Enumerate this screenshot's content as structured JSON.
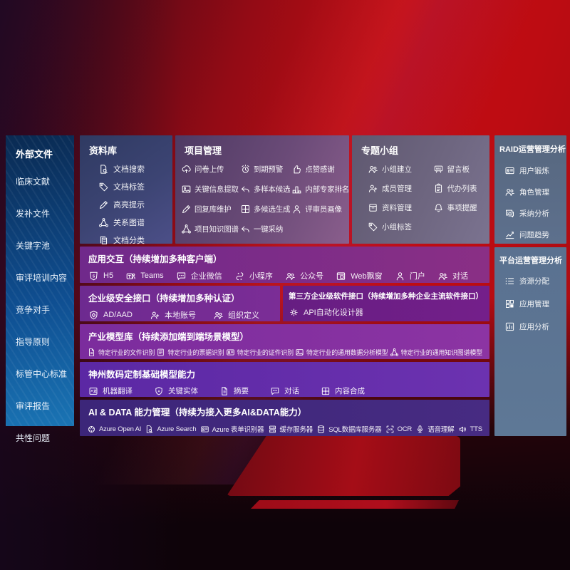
{
  "sidebar": {
    "title": "外部文件",
    "items": [
      "临床文献",
      "发补文件",
      "关键字池",
      "审评培训内容",
      "竞争对手",
      "指导原则",
      "标管中心标准",
      "审评报告",
      "共性问题"
    ]
  },
  "panels": {
    "library": {
      "title": "资料库",
      "items": [
        {
          "label": "文档搜索",
          "icon": "document-search"
        },
        {
          "label": "文档标签",
          "icon": "tag"
        },
        {
          "label": "高亮提示",
          "icon": "highlight-pen"
        },
        {
          "label": "关系图谱",
          "icon": "knowledge-graph"
        },
        {
          "label": "文档分类",
          "icon": "documents"
        }
      ]
    },
    "project": {
      "title": "项目管理",
      "items": [
        {
          "label": "问卷上传",
          "icon": "cloud-upload"
        },
        {
          "label": "关键信息提取",
          "icon": "image-extract"
        },
        {
          "label": "回复库维护",
          "icon": "edit-pen"
        },
        {
          "label": "项目知识图谱",
          "icon": "knowledge-graph"
        },
        {
          "label": "到期预警",
          "icon": "alarm"
        },
        {
          "label": "多样本候选",
          "icon": "reply-arrow"
        },
        {
          "label": "多候选生成",
          "icon": "puzzle"
        },
        {
          "label": "一键采纳",
          "icon": "back-arrow"
        },
        {
          "label": "点赞感谢",
          "icon": "thumb-up"
        },
        {
          "label": "内部专家排名",
          "icon": "ranking"
        },
        {
          "label": "评审员画像",
          "icon": "person"
        }
      ]
    },
    "group": {
      "title": "专题小组",
      "items": [
        {
          "label": "小组建立",
          "icon": "people"
        },
        {
          "label": "成员管理",
          "icon": "person-add"
        },
        {
          "label": "资料管理",
          "icon": "archive-box"
        },
        {
          "label": "小组标签",
          "icon": "tag"
        },
        {
          "label": "留言板",
          "icon": "bbs-board"
        },
        {
          "label": "代办列表",
          "icon": "clipboard"
        },
        {
          "label": "事项提醒",
          "icon": "bell"
        }
      ]
    },
    "raid": {
      "title": "RAID运营管理分析",
      "items": [
        {
          "label": "用户锻炼",
          "icon": "id-card"
        },
        {
          "label": "角色管理",
          "icon": "people"
        },
        {
          "label": "采纳分析",
          "icon": "chat-qa"
        },
        {
          "label": "问题趋势",
          "icon": "trend-chart"
        }
      ]
    },
    "platform": {
      "title": "平台运营管理分析",
      "items": [
        {
          "label": "资源分配",
          "icon": "list"
        },
        {
          "label": "应用管理",
          "icon": "grid-apps"
        },
        {
          "label": "应用分析",
          "icon": "chart-report"
        }
      ]
    }
  },
  "bands": {
    "interaction": {
      "title": "应用交互（持续增加多种客户端）",
      "items": [
        {
          "label": "H5",
          "icon": "h5"
        },
        {
          "label": "Teams",
          "icon": "teams"
        },
        {
          "label": "企业微信",
          "icon": "wechat-work"
        },
        {
          "label": "小程序",
          "icon": "mini-program"
        },
        {
          "label": "公众号",
          "icon": "official-account"
        },
        {
          "label": "Web飘窗",
          "icon": "web-window"
        },
        {
          "label": "门户",
          "icon": "portal-person"
        },
        {
          "label": "对话",
          "icon": "dialog-people"
        }
      ]
    },
    "security": {
      "title": "企业级安全接口（持续增加多种认证）",
      "items": [
        {
          "label": "AD/AAD",
          "icon": "ad-shield"
        },
        {
          "label": "本地账号",
          "icon": "local-account"
        },
        {
          "label": "组织定义",
          "icon": "organization"
        }
      ]
    },
    "thirdparty": {
      "title": "第三方企业级软件接口（持续增加多种企业主流软件接口）",
      "items": [
        {
          "label": "API自动化设计器",
          "icon": "api-gear"
        }
      ]
    },
    "models": {
      "title": "产业模型库（持续添加端到端场景模型）",
      "items": [
        {
          "label": "特定行业的文件识别",
          "icon": "doc-recognize"
        },
        {
          "label": "特定行业的票据识别",
          "icon": "invoice-list"
        },
        {
          "label": "特定行业的证件识别",
          "icon": "id-card"
        },
        {
          "label": "特定行业的通用数据分析模型",
          "icon": "image-chart"
        },
        {
          "label": "特定行业的通用知识图谱模型",
          "icon": "knowledge-graph"
        }
      ]
    },
    "base_models": {
      "title": "神州数码定制基础模型能力",
      "items": [
        {
          "label": "机器翻译",
          "icon": "translate"
        },
        {
          "label": "关键实体",
          "icon": "entity-shield"
        },
        {
          "label": "摘要",
          "icon": "summary-doc"
        },
        {
          "label": "对话",
          "icon": "chat-bubble"
        },
        {
          "label": "内容合成",
          "icon": "compose-puzzle"
        }
      ]
    },
    "ai_data": {
      "title": "AI & DATA 能力管理（持续为接入更多AI&DATA能力）",
      "items": [
        {
          "label": "Azure Open AI",
          "icon": "openai"
        },
        {
          "label": "Azure Search",
          "icon": "azure-search"
        },
        {
          "label": "Azure 表单识别器",
          "icon": "form-recognizer"
        },
        {
          "label": "缓存服务器",
          "icon": "cache-server"
        },
        {
          "label": "SQL数据库服务器",
          "icon": "sql-database"
        },
        {
          "label": "OCR",
          "icon": "ocr"
        },
        {
          "label": "语音理解",
          "icon": "speech"
        },
        {
          "label": "TTS",
          "icon": "tts-speaker"
        }
      ]
    }
  },
  "colors": {
    "background_red": "#c00d13",
    "sidebar_blue_top": "#0a2a52",
    "sidebar_blue_bottom": "#1a74b4",
    "library_navy": "#3c4473",
    "project_mauve": "#6b4b78",
    "group_gray_purple": "#6e6680",
    "raid_slate": "#5c6d89",
    "platform_slate": "#5c7392",
    "interaction_purple": "#7c2c88",
    "security_purple": "#742c93",
    "thirdparty_purple": "#6c1f86",
    "models_purple": "#8330a0",
    "base_models_violet": "#6330aa",
    "ai_data_indigo": "#41287d",
    "text_white": "#ffffff"
  }
}
